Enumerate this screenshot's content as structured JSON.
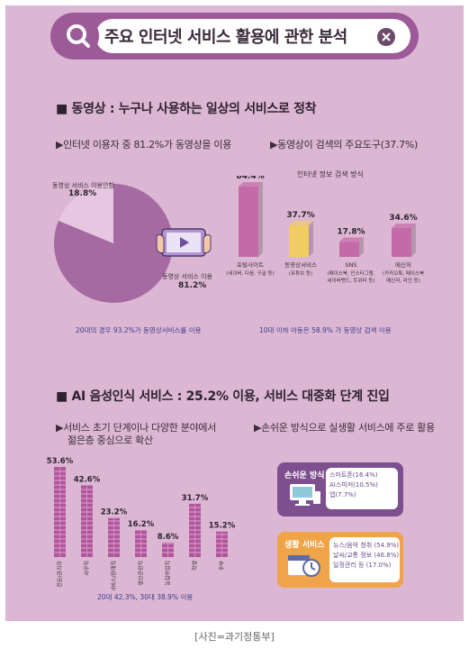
{
  "title": "주요 인터넷 서비스 활용에 관한 분석",
  "section1": {
    "heading": "■ 동영상 : 누구나 사용하는 일상의 서비스로 정착",
    "left_sub": "▶인터넷 이용자 중 81.2%가 동영상을 이용",
    "right_sub": "▶동영상이 검색의 주요도구(37.7%)",
    "left_note": "20대의 경우 93.2%가 동영상서비스를 이용",
    "right_note": "10대 이하 아동은 58.9% 가 동영상 검색 이용",
    "pie_label_a": "동영상 서비스 이용안함",
    "pie_label_a_pct": "18.8%",
    "pie_label_b": "동영상 서비스 이용",
    "pie_label_b_pct": "81.2%",
    "bar_title": "인터넷 정보 검색 방식"
  },
  "section2": {
    "heading": "■ AI 음성인식 서비스 : 25.2% 이용, 서비스 대중화 단계 진입",
    "left_sub_1": "▶서비스 초기 단계이나 다양한 분야에서",
    "left_sub_2": "젊은층 중심으로 확산",
    "right_sub": "▶손쉬운 방식으로 실생활 서비스에 주로 활용",
    "left_note": "20대 42.3%, 30대 38.9% 이용",
    "easy_box": {
      "label": "손쉬운 방식",
      "items": [
        "스마트폰(16.4%)",
        "AI스피커(10.5%)",
        "앱(7.7%)"
      ]
    },
    "life_box": {
      "label": "생활 서비스",
      "items": [
        "뉴스/음악 청취 (54.9%)",
        "날씨/교통 정보 (46.8%)",
        "일정관리 등 (17.0%)"
      ]
    }
  },
  "caption": "[사진=과기정통부]",
  "colors": {
    "background": "#dcb7d4",
    "purple": "#9d5a98",
    "pie_main": "#a66aa2",
    "pie_light": "#e7c6e2",
    "bar_pink": "#c56aa8",
    "bar_yellow": "#f0cc63",
    "ai_bar": "#b2569c",
    "easy_box": "#7e4f8f",
    "life_box": "#efa44a"
  },
  "chart_data": [
    {
      "type": "pie",
      "title": "",
      "slices": [
        {
          "label": "동영상 서비스 이용",
          "value": 81.2
        },
        {
          "label": "동영상 서비스 이용안함",
          "value": 18.8
        }
      ]
    },
    {
      "type": "bar",
      "title": "인터넷 정보 검색 방식",
      "categories": [
        "포털사이트",
        "동영상서비스",
        "SNS",
        "메신저"
      ],
      "category_notes": [
        "(네이버, 다음, 구글 등)",
        "(유튜브 등)",
        "(페이스북, 인스타그램, 네이버밴드, 트위터 등)",
        "(카카오톡, 페이스북 메신저, 라인 등)"
      ],
      "values": [
        84.4,
        37.7,
        17.8,
        34.6
      ],
      "value_labels": [
        "84.4%",
        "37.7%",
        "17.8%",
        "34.6%"
      ]
    },
    {
      "type": "bar",
      "title": "",
      "categories": [
        "전문/관리자",
        "사무직",
        "서비스/판매직",
        "생산관련직",
        "농림어업직",
        "학생",
        "주부"
      ],
      "values": [
        53.6,
        42.6,
        23.2,
        16.2,
        8.6,
        31.7,
        15.2
      ],
      "value_labels": [
        "53.6%",
        "42.6%",
        "23.2%",
        "16.2%",
        "8.6%",
        "31.7%",
        "15.2%"
      ]
    }
  ]
}
